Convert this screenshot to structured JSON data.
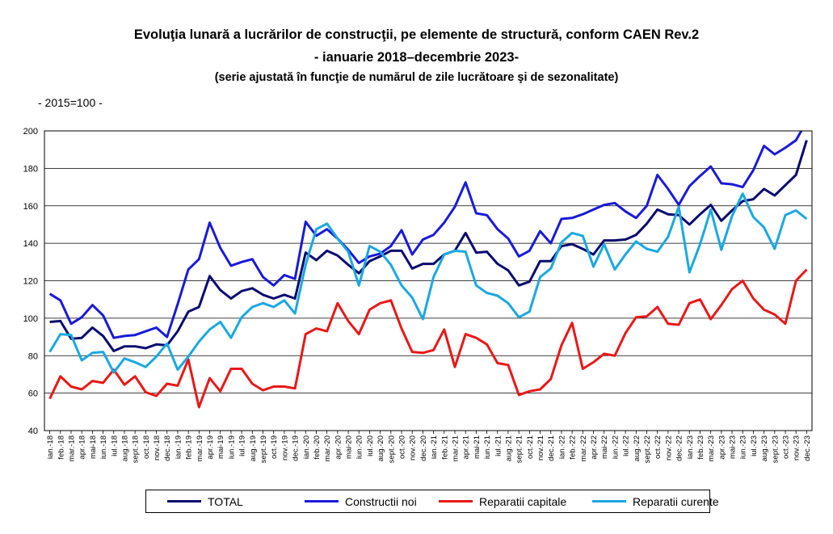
{
  "header": {
    "title_line1": "Evoluţia lunară a lucrărilor de construcţii, pe elemente de structură, conform CAEN Rev.2",
    "title_line2": "- ianuarie 2018–decembrie 2023-",
    "title_line3": "(serie ajustată în funcţie de numărul de zile lucrătoare şi de sezonalitate)",
    "unit_note": "- 2015=100 -"
  },
  "chart_data": {
    "type": "line",
    "title": "Evoluţia lunară a lucrărilor de construcţii, pe elemente de structură, conform CAEN Rev.2",
    "ylim": [
      40,
      200
    ],
    "yticks": [
      40,
      60,
      80,
      100,
      120,
      140,
      160,
      180,
      200
    ],
    "grid": "horizontal",
    "legend_position": "bottom",
    "x": [
      "ian.-18",
      "feb.-18",
      "mar.-18",
      "apr.-18",
      "mai-18",
      "iun.-18",
      "iul.-18",
      "aug.-18",
      "sept.-18",
      "oct.-18",
      "nov.-18",
      "dec.-18",
      "ian.-19",
      "feb.-19",
      "mar.-19",
      "apr.-19",
      "mai-19",
      "iun.-19",
      "iul.-19",
      "aug.-19",
      "sept.-19",
      "oct.-19",
      "nov.-19",
      "dec.-19",
      "ian.-20",
      "feb.-20",
      "mar.-20",
      "apr.-20",
      "mai-20",
      "iun.-20",
      "iul.-20",
      "aug.-20",
      "sept.-20",
      "oct.-20",
      "nov.-20",
      "dec.-20",
      "ian.-21",
      "feb.-21",
      "mar.-21",
      "apr.-21",
      "mai-21",
      "iun.-21",
      "iul.-21",
      "aug.-21",
      "sept.-21",
      "oct.-21",
      "nov.-21",
      "dec.-21",
      "ian.-22",
      "feb.-22",
      "mar.-22",
      "apr.-22",
      "mai-22",
      "iun.-22",
      "iul.-22",
      "aug.-22",
      "sept.-22",
      "oct.-22",
      "nov.-22",
      "dec.-22",
      "ian.-23",
      "feb.-23",
      "mar.-23",
      "apr.-23",
      "mai-23",
      "iun.-23",
      "iul.-23",
      "aug.-23",
      "sept.-23",
      "oct.-23",
      "nov.-23",
      "dec.-23"
    ],
    "series": [
      {
        "name": "TOTAL",
        "color": "#0a0a6e",
        "values": [
          98,
          98.5,
          89,
          89.5,
          95,
          90.5,
          82.5,
          85,
          85,
          84,
          86,
          85.5,
          93,
          103.5,
          106,
          122.5,
          115,
          110.5,
          114.5,
          116,
          112.5,
          110.5,
          112.5,
          110.5,
          135,
          131,
          136,
          133.5,
          128.5,
          124,
          130.5,
          133,
          136,
          136,
          126.5,
          129,
          129,
          134,
          136,
          145.5,
          135,
          135.5,
          129,
          125.5,
          117.5,
          119.5,
          130.5,
          130.5,
          138.5,
          139.5,
          137,
          134,
          141.5,
          141.5,
          142,
          144.5,
          150.5,
          158,
          155.5,
          155,
          150,
          155.5,
          160.5,
          152,
          157.5,
          162.5,
          163.5,
          169,
          165.5,
          171,
          176.5,
          195
        ]
      },
      {
        "name": "Constructii noi",
        "color": "#1a1ad8",
        "values": [
          113,
          109.5,
          97,
          100.5,
          107,
          101.5,
          89.5,
          90.5,
          91,
          93,
          95,
          90,
          107.5,
          126,
          131.5,
          151,
          137.5,
          128,
          130,
          131.5,
          122,
          117.5,
          123,
          121,
          151.5,
          144,
          147.5,
          142.5,
          136.5,
          129.5,
          133,
          134.5,
          138.5,
          147,
          134,
          142,
          144.5,
          151,
          159.5,
          172.5,
          156,
          155,
          147.5,
          142.5,
          133,
          136,
          146.5,
          140,
          153,
          153.5,
          155.5,
          158,
          160.5,
          161.5,
          157,
          153.5,
          160,
          176.5,
          169,
          160.5,
          170.5,
          176,
          181,
          172,
          171.5,
          170,
          179,
          192,
          187.5,
          191,
          195,
          205
        ]
      },
      {
        "name": "Reparatii capitale",
        "color": "#e81818",
        "values": [
          57,
          69,
          63.5,
          62,
          66.5,
          65.5,
          72.5,
          64.5,
          69,
          60.5,
          58.5,
          65,
          64,
          78,
          52.5,
          68,
          61,
          73,
          73,
          65,
          61.5,
          63.5,
          63.5,
          62.5,
          91.5,
          94.5,
          93,
          108,
          98.5,
          91.5,
          104.5,
          108,
          109.5,
          94.5,
          82,
          81.5,
          83,
          94,
          74,
          91.5,
          89.5,
          86,
          76,
          75,
          59,
          61,
          62,
          67.5,
          85.5,
          97.5,
          73,
          76.5,
          81,
          80,
          92,
          100.5,
          101,
          106,
          97,
          96.5,
          108,
          110,
          99.5,
          107,
          115.5,
          120,
          110.5,
          104.5,
          102,
          97,
          120,
          126
        ]
      },
      {
        "name": "Reparatii curente",
        "color": "#1aa8e0",
        "values": [
          82,
          91.5,
          91,
          77.5,
          81.5,
          82,
          71,
          78.5,
          76.5,
          74,
          79.5,
          86.5,
          72.5,
          79.5,
          87.5,
          94,
          98,
          89.5,
          100.5,
          106,
          108,
          106,
          109.5,
          102.5,
          128.5,
          147.5,
          150.5,
          142.5,
          135.5,
          117.5,
          138.5,
          135.5,
          128.5,
          117.5,
          111,
          99.5,
          122,
          134,
          136,
          135.5,
          117.5,
          113.5,
          112,
          108,
          100.5,
          103.5,
          122,
          126.5,
          140.5,
          145.5,
          144,
          127.5,
          139.5,
          126,
          134,
          141,
          137,
          135.5,
          143.5,
          159.5,
          124.5,
          139.5,
          158,
          136.5,
          154.5,
          166.5,
          154,
          148.5,
          137,
          155,
          157.5,
          153
        ]
      }
    ]
  }
}
